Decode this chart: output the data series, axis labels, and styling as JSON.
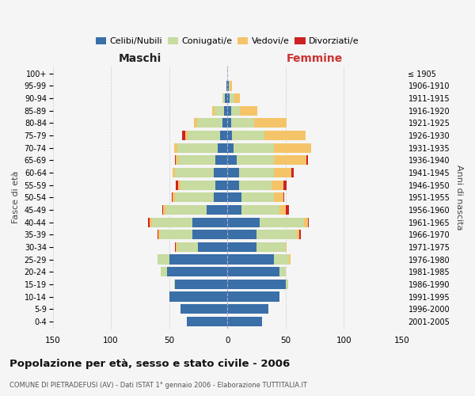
{
  "age_groups": [
    "100+",
    "95-99",
    "90-94",
    "85-89",
    "80-84",
    "75-79",
    "70-74",
    "65-69",
    "60-64",
    "55-59",
    "50-54",
    "45-49",
    "40-44",
    "35-39",
    "30-34",
    "25-29",
    "20-24",
    "15-19",
    "10-14",
    "5-9",
    "0-4"
  ],
  "birth_years": [
    "≤ 1905",
    "1906-1910",
    "1911-1915",
    "1916-1920",
    "1921-1925",
    "1926-1930",
    "1931-1935",
    "1936-1940",
    "1941-1945",
    "1946-1950",
    "1951-1955",
    "1956-1960",
    "1961-1965",
    "1966-1970",
    "1971-1975",
    "1976-1980",
    "1981-1985",
    "1986-1990",
    "1991-1995",
    "1996-2000",
    "2001-2005"
  ],
  "m_celibi": [
    0,
    1,
    2,
    3,
    4,
    6,
    8,
    10,
    12,
    10,
    12,
    18,
    30,
    30,
    25,
    50,
    52,
    45,
    50,
    40,
    35
  ],
  "m_coniugati": [
    0,
    0,
    2,
    8,
    22,
    28,
    35,
    32,
    33,
    30,
    33,
    35,
    35,
    28,
    18,
    10,
    5,
    1,
    0,
    0,
    0
  ],
  "m_vedovi": [
    0,
    0,
    0,
    2,
    3,
    2,
    3,
    2,
    2,
    2,
    2,
    2,
    2,
    1,
    1,
    0,
    0,
    0,
    0,
    0,
    0
  ],
  "m_divorziati": [
    0,
    0,
    0,
    0,
    0,
    3,
    0,
    1,
    0,
    2,
    1,
    1,
    1,
    1,
    1,
    0,
    0,
    0,
    0,
    0,
    0
  ],
  "f_nubili": [
    0,
    1,
    2,
    3,
    3,
    4,
    5,
    8,
    10,
    10,
    12,
    12,
    28,
    25,
    25,
    40,
    45,
    50,
    45,
    35,
    30
  ],
  "f_coniugate": [
    0,
    1,
    4,
    8,
    20,
    28,
    35,
    32,
    30,
    28,
    28,
    33,
    38,
    35,
    25,
    13,
    5,
    2,
    0,
    0,
    0
  ],
  "f_vedove": [
    0,
    2,
    5,
    15,
    28,
    35,
    32,
    28,
    15,
    10,
    8,
    5,
    3,
    2,
    1,
    1,
    0,
    0,
    0,
    0,
    0
  ],
  "f_divorziate": [
    0,
    0,
    0,
    0,
    0,
    0,
    0,
    1,
    2,
    3,
    1,
    3,
    1,
    1,
    0,
    0,
    0,
    0,
    0,
    0,
    0
  ],
  "colors": {
    "celibi": "#3a6fa8",
    "coniugati": "#c8dba0",
    "vedovi": "#f5c469",
    "divorziati": "#cc2222"
  },
  "title": "Popolazione per età, sesso e stato civile - 2006",
  "subtitle": "COMUNE DI PIETRADEFUSI (AV) - Dati ISTAT 1° gennaio 2006 - Elaborazione TUTTITALIA.IT",
  "ylabel_left": "Fasce di età",
  "ylabel_right": "Anni di nascita",
  "xlabel_left": "Maschi",
  "xlabel_right": "Femmine",
  "xlim": 150,
  "bg_color": "#f5f5f5"
}
